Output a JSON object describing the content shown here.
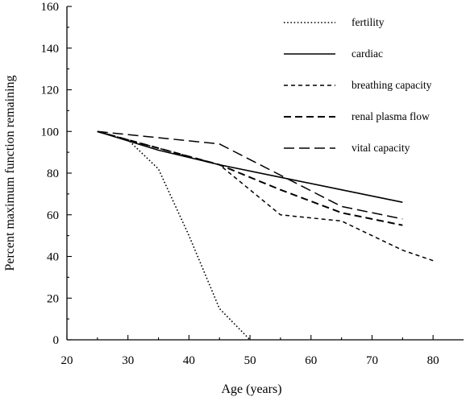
{
  "chart_data": {
    "type": "line",
    "title": "",
    "xlabel": "Age (years)",
    "ylabel": "Percent maximum function remaining",
    "xlim": [
      20,
      85
    ],
    "ylim": [
      0,
      160
    ],
    "xticks": [
      20,
      30,
      40,
      50,
      60,
      70,
      80
    ],
    "yticks": [
      0,
      20,
      40,
      60,
      80,
      100,
      120,
      140,
      160
    ],
    "grid": false,
    "legend_position": "top-right",
    "series": [
      {
        "name": "fertility",
        "dash": "dotted",
        "x": [
          25,
          30,
          35,
          40,
          45,
          50
        ],
        "y": [
          100,
          96,
          82,
          50,
          15,
          0
        ]
      },
      {
        "name": "cardiac",
        "dash": "solid",
        "x": [
          25,
          35,
          45,
          55,
          65,
          75
        ],
        "y": [
          100,
          91,
          84,
          78,
          72,
          66
        ]
      },
      {
        "name": "breathing capacity",
        "dash": "short-dash",
        "x": [
          25,
          35,
          45,
          55,
          65,
          75,
          80
        ],
        "y": [
          100,
          92,
          84,
          60,
          57,
          43,
          38
        ]
      },
      {
        "name": "renal plasma flow",
        "dash": "medium-dash",
        "x": [
          25,
          35,
          45,
          55,
          65,
          75
        ],
        "y": [
          100,
          92,
          84,
          72,
          61,
          55
        ]
      },
      {
        "name": "vital capacity",
        "dash": "long-dash",
        "x": [
          25,
          35,
          45,
          55,
          65,
          75
        ],
        "y": [
          100,
          97,
          94,
          79,
          64,
          58
        ]
      }
    ]
  }
}
